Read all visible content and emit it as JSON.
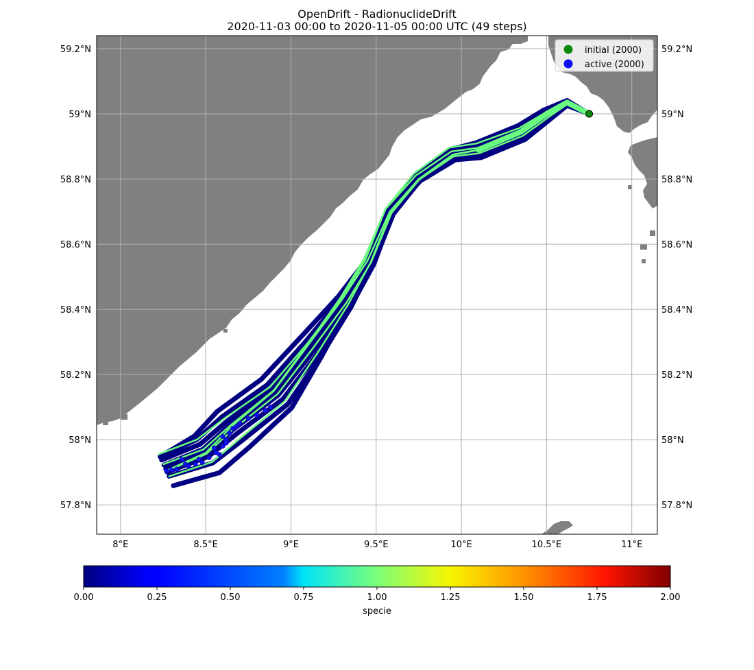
{
  "title_line1": "OpenDrift - RadionuclideDrift",
  "title_line2": "2020-11-03 00:00 to 2020-11-05 00:00 UTC (49 steps)",
  "colors": {
    "land": "#808080",
    "sea": "#ffffff",
    "grid": "#b0b0b0",
    "trajectory_species0": "#000080",
    "trajectory_species1": "#6afc7f",
    "initial_marker": "#0a8a0a",
    "active_marker": "#1010f0"
  },
  "chart_data": {
    "type": "map",
    "xlim": [
      7.86,
      11.15
    ],
    "ylim": [
      57.71,
      59.24
    ],
    "lon_ticks": [
      8.0,
      8.5,
      9.0,
      9.5,
      10.0,
      10.5,
      11.0
    ],
    "lon_tick_labels": [
      "8°E",
      "8.5°E",
      "9°E",
      "9.5°E",
      "10°E",
      "10.5°E",
      "11°E"
    ],
    "lat_ticks": [
      57.8,
      58.0,
      58.2,
      58.4,
      58.6,
      58.8,
      59.0,
      59.2
    ],
    "lat_tick_labels": [
      "57.8°N",
      "58°N",
      "58.2°N",
      "58.4°N",
      "58.6°N",
      "58.8°N",
      "59°N",
      "59.2°N"
    ],
    "grid": true,
    "legend_position": "top-right",
    "legend": [
      {
        "label": "initial (2000)",
        "color": "#0a8a0a"
      },
      {
        "label": "active (2000)",
        "color": "#1010f0"
      }
    ],
    "seed_point": {
      "lon": 10.75,
      "lat": 59.0
    },
    "trajectory_centerline": [
      [
        10.75,
        59.0
      ],
      [
        10.62,
        59.035
      ],
      [
        10.5,
        59.0
      ],
      [
        10.35,
        58.945
      ],
      [
        10.1,
        58.89
      ],
      [
        9.95,
        58.875
      ],
      [
        9.75,
        58.8
      ],
      [
        9.58,
        58.7
      ],
      [
        9.45,
        58.55
      ],
      [
        9.3,
        58.43
      ],
      [
        9.1,
        58.29
      ],
      [
        8.9,
        58.15
      ],
      [
        8.65,
        58.04
      ],
      [
        8.5,
        57.96
      ],
      [
        8.27,
        57.905
      ]
    ],
    "active_points": [
      [
        8.27,
        57.905
      ],
      [
        8.3,
        57.907
      ],
      [
        8.33,
        57.91
      ],
      [
        8.36,
        57.94
      ],
      [
        8.4,
        57.92
      ],
      [
        8.44,
        57.925
      ],
      [
        8.48,
        57.93
      ],
      [
        8.52,
        57.945
      ],
      [
        8.56,
        57.96
      ],
      [
        8.6,
        57.98
      ],
      [
        8.62,
        58.0
      ],
      [
        8.64,
        58.02
      ],
      [
        8.66,
        58.035
      ],
      [
        8.7,
        58.05
      ],
      [
        8.75,
        58.065
      ],
      [
        8.8,
        58.075
      ],
      [
        8.85,
        58.09
      ],
      [
        8.88,
        58.1
      ],
      [
        8.55,
        57.975
      ],
      [
        8.62,
        57.99
      ],
      [
        8.68,
        58.04
      ],
      [
        8.46,
        57.94
      ],
      [
        8.38,
        57.925
      ],
      [
        8.6,
        58.01
      ],
      [
        8.58,
        57.955
      ]
    ],
    "colorbar": {
      "label": "specie",
      "min": 0.0,
      "max": 2.0,
      "colormap": "jet",
      "ticks": [
        0.0,
        0.25,
        0.5,
        0.75,
        1.0,
        1.25,
        1.5,
        1.75,
        2.0
      ],
      "tick_labels": [
        "0.00",
        "0.25",
        "0.50",
        "0.75",
        "1.00",
        "1.25",
        "1.50",
        "1.75",
        "2.00"
      ]
    }
  }
}
